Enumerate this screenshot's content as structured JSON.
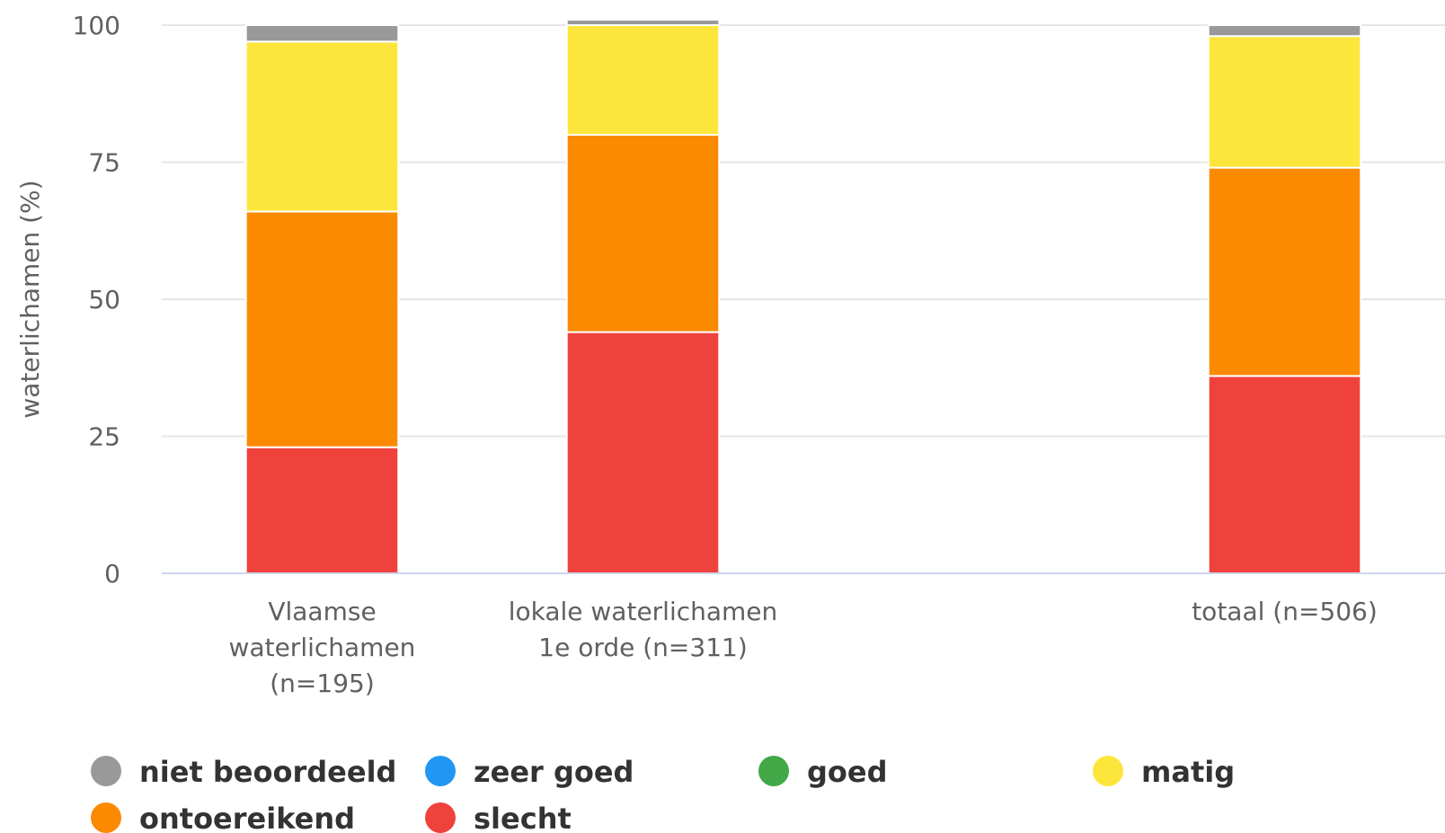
{
  "chart_data": {
    "type": "bar",
    "stacked": true,
    "categories": [
      [
        "Vlaamse",
        "waterlichamen",
        "(n=195)"
      ],
      [
        "lokale waterlichamen",
        "1e orde (n=311)"
      ],
      [],
      [
        "totaal (n=506)"
      ]
    ],
    "series": [
      {
        "name": "slecht",
        "color": "#f0423c",
        "values": [
          23,
          44,
          null,
          36
        ]
      },
      {
        "name": "ontoereikend",
        "color": "#fb8a00",
        "values": [
          43,
          36,
          null,
          38
        ]
      },
      {
        "name": "matig",
        "color": "#fde63b",
        "values": [
          31,
          20,
          null,
          24
        ]
      },
      {
        "name": "goed",
        "color": "#43a847",
        "values": [
          0,
          0,
          null,
          0
        ]
      },
      {
        "name": "zeer goed",
        "color": "#2196f3",
        "values": [
          0,
          0,
          null,
          0
        ]
      },
      {
        "name": "niet beoordeeld",
        "color": "#999999",
        "values": [
          3,
          1,
          null,
          2
        ]
      }
    ],
    "legend_order": [
      "niet beoordeeld",
      "zeer goed",
      "goed",
      "matig",
      "ontoereikend",
      "slecht"
    ],
    "ylabel": "waterlichamen (%)",
    "ylim": [
      0,
      100
    ],
    "yticks": [
      0,
      25,
      50,
      75,
      100
    ],
    "grid": true,
    "legend_position": "bottom-left"
  }
}
